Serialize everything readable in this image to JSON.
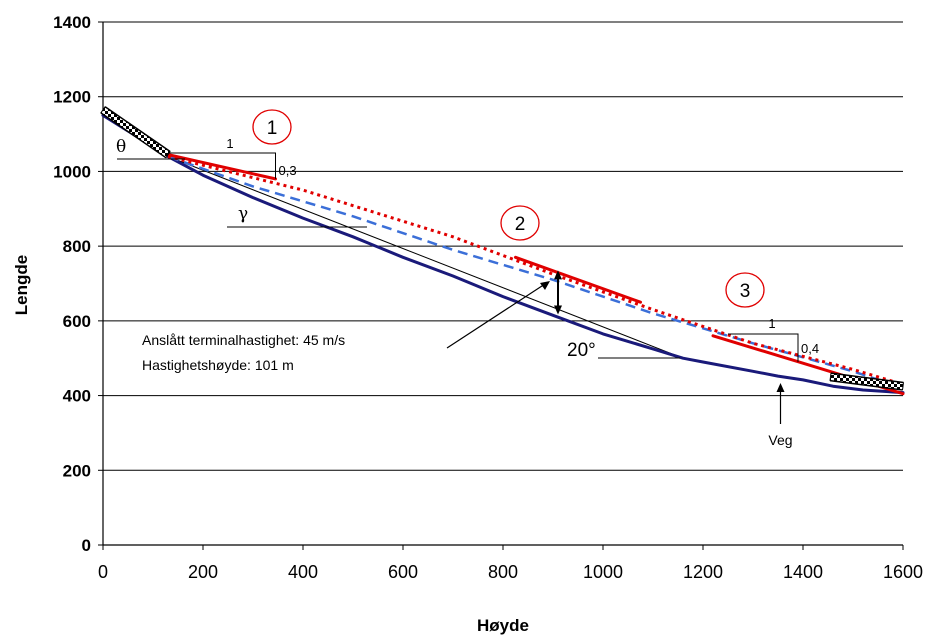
{
  "chart_data": {
    "type": "line",
    "xlabel": "Høyde",
    "ylabel": "Lengde",
    "xlim": [
      0,
      1600
    ],
    "ylim": [
      0,
      1400
    ],
    "x_ticks": [
      "0",
      "200",
      "400",
      "600",
      "800",
      "1000",
      "1200",
      "1400",
      "1600"
    ],
    "y_ticks": [
      "0",
      "200",
      "400",
      "600",
      "800",
      "1000",
      "1200",
      "1400"
    ],
    "grid": "horizontal",
    "series": [
      {
        "role": "terrain",
        "color": "#1a1a7a",
        "style": "solid",
        "x": [
          0,
          60,
          130,
          200,
          300,
          400,
          500,
          600,
          700,
          800,
          900,
          1000,
          1100,
          1160,
          1200,
          1300,
          1350,
          1400,
          1460,
          1520,
          1600
        ],
        "y": [
          1150,
          1100,
          1040,
          990,
          930,
          875,
          825,
          770,
          720,
          665,
          615,
          565,
          525,
          500,
          490,
          465,
          452,
          442,
          425,
          415,
          408
        ]
      },
      {
        "role": "chord",
        "color": "#000000",
        "style": "thin",
        "x": [
          130,
          1160
        ],
        "y": [
          1040,
          500
        ]
      },
      {
        "role": "blue-dashed",
        "color": "#3b6fd8",
        "style": "dashed",
        "x": [
          0,
          130,
          300,
          500,
          700,
          900,
          1100,
          1300,
          1500,
          1600
        ],
        "y": [
          1160,
          1040,
          960,
          880,
          790,
          710,
          620,
          540,
          465,
          420
        ]
      },
      {
        "role": "red-dotted",
        "color": "#e00000",
        "style": "dotted",
        "x": [
          130,
          400,
          700,
          900,
          1100,
          1300,
          1500,
          1600
        ],
        "y": [
          1040,
          950,
          825,
          725,
          630,
          540,
          470,
          430
        ]
      },
      {
        "role": "red-solid",
        "color": "#e00000",
        "style": "solid",
        "segments": [
          {
            "x": [
              130,
              345
            ],
            "y": [
              1045,
              980
            ]
          },
          {
            "x": [
              825,
              1075
            ],
            "y": [
              770,
              650
            ]
          },
          {
            "x": [
              1220,
              1600
            ],
            "y": [
              560,
              405
            ]
          }
        ]
      },
      {
        "role": "checkered",
        "color": "#000000",
        "style": "checkered",
        "segments": [
          {
            "x": [
              0,
              130
            ],
            "y": [
              1165,
              1045
            ]
          },
          {
            "x": [
              1455,
              1600
            ],
            "y": [
              450,
              425
            ]
          }
        ]
      }
    ],
    "annotations": {
      "circle_1": "1",
      "circle_2": "2",
      "circle_3": "3",
      "slope1_run": "1",
      "slope1_rise": "0,3",
      "slope3_run": "1",
      "slope3_rise": "0,4",
      "theta": "θ",
      "gamma": "γ",
      "angle_20": "20°",
      "terminal_speed": "Anslått terminalhastighet: 45 m/s",
      "speed_height": "Hastighetshøyde: 101 m",
      "road": "Veg"
    }
  }
}
